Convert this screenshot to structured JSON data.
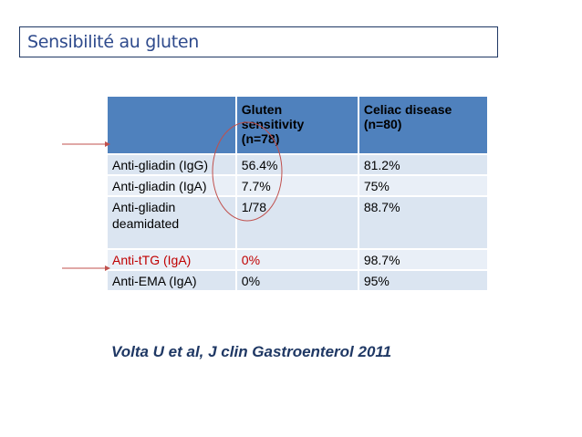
{
  "title": "Sensibilité au gluten",
  "table": {
    "headers": [
      "",
      "Gluten sensitivity (n=78)",
      "Celiac disease (n=80)"
    ],
    "header_lines": {
      "col2": [
        "Gluten",
        "sensitivity",
        "(n=78)"
      ],
      "col3": [
        "Celiac disease",
        "(n=80)"
      ]
    },
    "rows": [
      {
        "label": "Anti-gliadin  (IgG)",
        "gluten": "56.4%",
        "celiac": "81.2%"
      },
      {
        "label": "Anti-gliadin (IgA)",
        "gluten": "7.7%",
        "celiac": "75%"
      },
      {
        "label_lines": [
          "Anti-gliadin",
          "deamidated"
        ],
        "gluten": "1/78",
        "celiac": "88.7%"
      },
      {
        "label": "Anti-tTG (IgA)",
        "gluten": "0%",
        "celiac": "98.7%"
      },
      {
        "label": "Anti-EMA (IgA)",
        "gluten": "0%",
        "celiac": "95%"
      }
    ]
  },
  "citation": "Volta  U et al, J clin Gastroenterol 2011",
  "colors": {
    "header_bg": "#4f81bd",
    "row_bg": "#dbe5f1",
    "highlight": "#c00000",
    "title": "#2e4a8c",
    "citation": "#1f3864"
  }
}
